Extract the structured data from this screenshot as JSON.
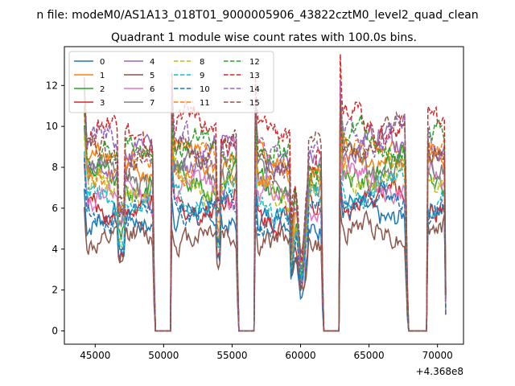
{
  "chart_data": {
    "type": "line",
    "suptitle": "n file: modeM0/AS1A13_018T01_9000005906_43822cztM0_level2_quad_clean",
    "title": "Quadrant 1 module wise count rates with 100.0s bins.",
    "xlabel": "",
    "ylabel": "",
    "x_offset_label": "+4.368e8",
    "xlim": [
      42750,
      71900
    ],
    "ylim": [
      -0.65,
      13.9
    ],
    "x_ticks": [
      45000,
      50000,
      55000,
      60000,
      65000,
      70000
    ],
    "x_tick_labels": [
      "45000",
      "50000",
      "55000",
      "60000",
      "65000",
      "70000"
    ],
    "y_ticks": [
      0,
      2,
      4,
      6,
      8,
      10,
      12
    ],
    "y_tick_labels": [
      "0",
      "2",
      "4",
      "6",
      "8",
      "10",
      "12"
    ],
    "grid": false,
    "legend_position": "top-left",
    "legend_columns": 4,
    "on_segments": [
      [
        44200,
        49350
      ],
      [
        50550,
        55450
      ],
      [
        56650,
        61650
      ],
      [
        62850,
        67800
      ],
      [
        69250,
        70600
      ]
    ],
    "series": [
      {
        "name": "0",
        "color": "#1f77b4",
        "dash": "solid",
        "base": 5.4
      },
      {
        "name": "1",
        "color": "#ff7f0e",
        "dash": "solid",
        "base": 8.2
      },
      {
        "name": "2",
        "color": "#2ca02c",
        "dash": "solid",
        "base": 7.3
      },
      {
        "name": "3",
        "color": "#d62728",
        "dash": "solid",
        "base": 6.0
      },
      {
        "name": "4",
        "color": "#9467bd",
        "dash": "solid",
        "base": 8.4
      },
      {
        "name": "5",
        "color": "#8c564b",
        "dash": "solid",
        "base": 4.5
      },
      {
        "name": "6",
        "color": "#e377c2",
        "dash": "solid",
        "base": 6.7
      },
      {
        "name": "7",
        "color": "#7f7f7f",
        "dash": "solid",
        "base": 7.6
      },
      {
        "name": "8",
        "color": "#bcbd22",
        "dash": "dashed",
        "base": 7.0
      },
      {
        "name": "9",
        "color": "#17becf",
        "dash": "dashed",
        "base": 6.4
      },
      {
        "name": "10",
        "color": "#1f77b4",
        "dash": "dashed",
        "base": 5.8
      },
      {
        "name": "11",
        "color": "#ff7f0e",
        "dash": "dashed",
        "base": 7.9
      },
      {
        "name": "12",
        "color": "#2ca02c",
        "dash": "dashed",
        "base": 8.6
      },
      {
        "name": "13",
        "color": "#d62728",
        "dash": "dashed",
        "base": 9.6
      },
      {
        "name": "14",
        "color": "#9467bd",
        "dash": "dashed",
        "base": 8.9
      },
      {
        "name": "15",
        "color": "#8c564b",
        "dash": "dashed",
        "base": 8.8
      }
    ]
  }
}
